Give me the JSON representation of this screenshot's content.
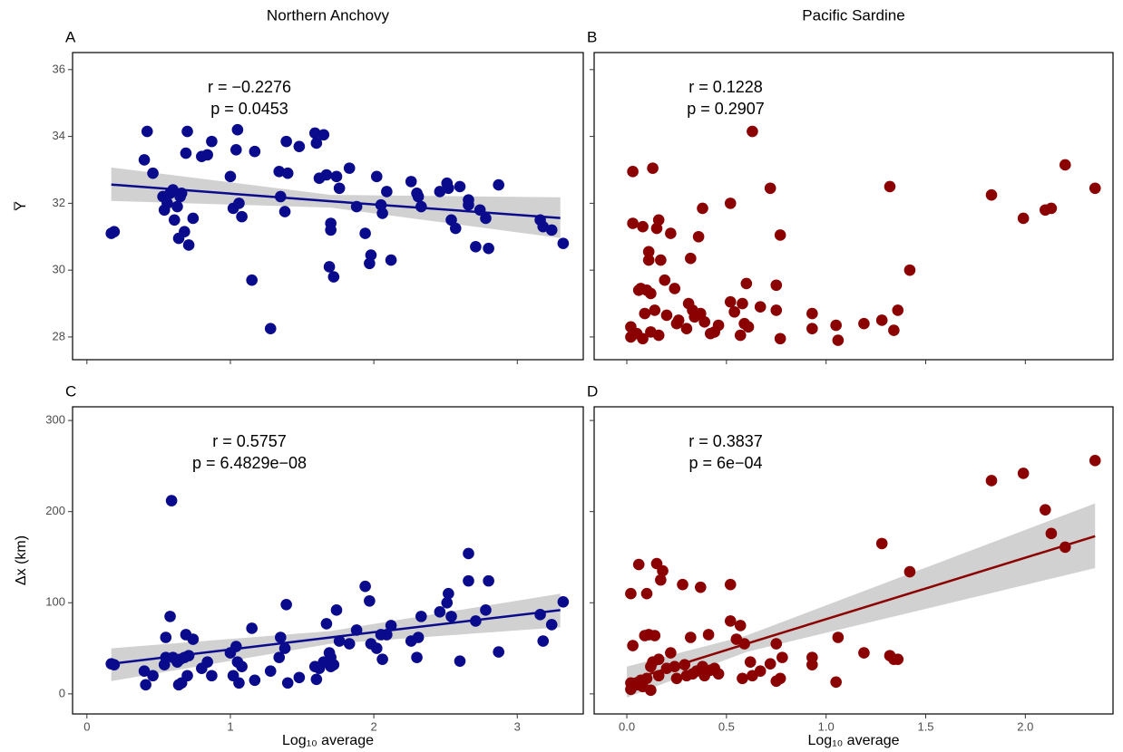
{
  "chart_data": [
    {
      "type": "scatter",
      "panel": "A",
      "column_title": "Northern Anchovy",
      "ylabel": "Y̅",
      "color": "#0a0a8c",
      "annotations": [
        "r = −0.2276",
        "p = 0.0453"
      ],
      "xlim": [
        -0.1,
        3.46
      ],
      "ylim": [
        27.32,
        36.51
      ],
      "xticks": [
        0,
        1,
        2,
        3
      ],
      "yticks": [
        28,
        30,
        32,
        34,
        36
      ],
      "x": [
        0.17,
        0.19,
        0.4,
        0.42,
        0.46,
        0.53,
        0.54,
        0.56,
        0.58,
        0.6,
        0.61,
        0.63,
        0.64,
        0.65,
        0.66,
        0.68,
        0.69,
        0.7,
        0.71,
        0.74,
        0.8,
        0.84,
        0.87,
        1.0,
        1.02,
        1.04,
        1.05,
        1.06,
        1.08,
        1.15,
        1.17,
        1.28,
        1.34,
        1.35,
        1.38,
        1.39,
        1.4,
        1.48,
        1.59,
        1.6,
        1.62,
        1.65,
        1.67,
        1.69,
        1.7,
        1.7,
        1.72,
        1.74,
        1.76,
        1.83,
        1.88,
        1.94,
        1.97,
        1.98,
        2.02,
        2.05,
        2.06,
        2.09,
        2.12,
        2.26,
        2.3,
        2.31,
        2.33,
        2.46,
        2.51,
        2.52,
        2.54,
        2.57,
        2.6,
        2.66,
        2.66,
        2.71,
        2.74,
        2.78,
        2.8,
        2.87,
        3.16,
        3.18,
        3.24,
        3.32
      ],
      "y": [
        31.1,
        31.15,
        33.3,
        34.15,
        32.9,
        32.2,
        31.8,
        32.0,
        32.3,
        32.4,
        31.5,
        31.9,
        30.95,
        32.2,
        32.3,
        31.15,
        33.5,
        34.15,
        30.75,
        31.55,
        33.4,
        33.45,
        33.85,
        32.8,
        31.85,
        33.6,
        34.2,
        32.0,
        31.6,
        29.7,
        33.55,
        28.25,
        32.95,
        32.2,
        31.75,
        33.85,
        32.9,
        33.7,
        34.1,
        33.8,
        32.75,
        34.05,
        32.85,
        30.1,
        31.4,
        31.2,
        29.8,
        32.8,
        32.45,
        33.05,
        31.9,
        31.1,
        30.2,
        30.45,
        32.8,
        31.95,
        31.7,
        32.35,
        30.3,
        32.65,
        32.3,
        32.2,
        31.9,
        32.35,
        32.6,
        32.45,
        31.5,
        31.25,
        32.5,
        32.1,
        31.95,
        30.7,
        31.8,
        31.55,
        30.65,
        32.55,
        31.5,
        31.3,
        31.2,
        30.8
      ],
      "fit": {
        "x": [
          0.17,
          1.7,
          3.3
        ],
        "y": [
          32.56,
          32.06,
          31.56
        ],
        "lower": [
          32.07,
          31.87,
          30.96
        ],
        "upper": [
          33.07,
          32.25,
          32.18
        ]
      }
    },
    {
      "type": "scatter",
      "panel": "B",
      "column_title": "Pacific Sardine",
      "color": "#8b0000",
      "annotations": [
        "r = 0.1228",
        "p = 0.2907"
      ],
      "xlim": [
        -0.164,
        2.44
      ],
      "ylim": [
        27.32,
        36.51
      ],
      "xticks": [
        0,
        0.5,
        1,
        1.5,
        2
      ],
      "yticks": [
        28,
        30,
        32,
        34,
        36
      ],
      "x": [
        0.02,
        0.02,
        0.03,
        0.03,
        0.05,
        0.06,
        0.07,
        0.08,
        0.08,
        0.09,
        0.1,
        0.11,
        0.11,
        0.12,
        0.12,
        0.13,
        0.14,
        0.15,
        0.16,
        0.16,
        0.17,
        0.19,
        0.2,
        0.22,
        0.24,
        0.25,
        0.26,
        0.3,
        0.31,
        0.32,
        0.33,
        0.34,
        0.36,
        0.37,
        0.38,
        0.39,
        0.42,
        0.44,
        0.46,
        0.52,
        0.52,
        0.54,
        0.57,
        0.58,
        0.59,
        0.6,
        0.61,
        0.63,
        0.67,
        0.72,
        0.75,
        0.75,
        0.77,
        0.77,
        0.93,
        0.93,
        1.05,
        1.06,
        1.19,
        1.28,
        1.32,
        1.34,
        1.36,
        1.42,
        1.83,
        1.99,
        2.1,
        2.13,
        2.2,
        2.35
      ],
      "y": [
        28.0,
        28.3,
        32.95,
        31.4,
        28.1,
        29.4,
        29.45,
        27.95,
        31.3,
        28.7,
        29.4,
        30.3,
        30.55,
        29.3,
        28.15,
        33.05,
        28.8,
        31.25,
        31.5,
        28.05,
        30.3,
        29.7,
        28.65,
        31.1,
        29.45,
        28.4,
        28.5,
        28.25,
        29.0,
        30.35,
        28.8,
        28.6,
        31.0,
        28.7,
        31.85,
        28.45,
        28.1,
        28.15,
        28.35,
        29.05,
        32.0,
        28.75,
        28.05,
        29.0,
        28.4,
        29.6,
        28.3,
        34.15,
        28.9,
        32.45,
        28.8,
        29.55,
        31.05,
        27.95,
        28.7,
        28.25,
        28.35,
        27.9,
        28.4,
        28.5,
        32.5,
        28.2,
        28.8,
        30.0,
        32.25,
        31.55,
        31.8,
        31.85,
        33.15,
        32.45
      ]
    },
    {
      "type": "scatter",
      "panel": "C",
      "ylabel": "Δx (km)",
      "xlabel": "Log₁₀ average",
      "color": "#0a0a8c",
      "annotations": [
        "r = 0.5757",
        "p = 6.4829e−08"
      ],
      "xlim": [
        -0.1,
        3.46
      ],
      "ylim": [
        -22,
        315
      ],
      "xticks": [
        0,
        1,
        2,
        3
      ],
      "yticks": [
        0,
        100,
        200,
        300
      ],
      "x": [
        0.17,
        0.19,
        0.4,
        0.41,
        0.46,
        0.54,
        0.55,
        0.55,
        0.58,
        0.59,
        0.6,
        0.63,
        0.64,
        0.65,
        0.66,
        0.68,
        0.69,
        0.7,
        0.71,
        0.74,
        0.8,
        0.84,
        0.87,
        1.0,
        1.02,
        1.04,
        1.05,
        1.06,
        1.08,
        1.15,
        1.17,
        1.28,
        1.34,
        1.35,
        1.38,
        1.39,
        1.4,
        1.48,
        1.59,
        1.6,
        1.62,
        1.65,
        1.67,
        1.69,
        1.7,
        1.7,
        1.72,
        1.74,
        1.76,
        1.83,
        1.88,
        1.94,
        1.97,
        1.98,
        2.02,
        2.05,
        2.06,
        2.09,
        2.12,
        2.26,
        2.3,
        2.31,
        2.33,
        2.46,
        2.51,
        2.52,
        2.54,
        2.6,
        2.66,
        2.66,
        2.71,
        2.78,
        2.8,
        2.87,
        3.16,
        3.18,
        3.24,
        3.32
      ],
      "y": [
        33,
        32,
        25,
        10,
        20,
        32,
        62,
        40,
        85,
        212,
        40,
        35,
        10,
        38,
        12,
        40,
        65,
        20,
        42,
        60,
        28,
        35,
        20,
        45,
        20,
        52,
        35,
        12,
        30,
        72,
        15,
        25,
        40,
        62,
        50,
        98,
        12,
        18,
        30,
        16,
        28,
        35,
        77,
        45,
        30,
        40,
        32,
        92,
        58,
        55,
        70,
        118,
        102,
        55,
        50,
        65,
        38,
        65,
        75,
        58,
        40,
        62,
        85,
        90,
        100,
        110,
        85,
        36,
        154,
        124,
        80,
        92,
        124,
        46,
        87,
        58,
        76,
        101
      ],
      "fit": {
        "x": [
          0.17,
          1.7,
          3.3
        ],
        "y": [
          33,
          62,
          92
        ],
        "lower": [
          14,
          55,
          73
        ],
        "upper": [
          50,
          69,
          110
        ]
      }
    },
    {
      "type": "scatter",
      "panel": "D",
      "xlabel": "Log₁₀ average",
      "color": "#8b0000",
      "annotations": [
        "r = 0.3837",
        "p = 6e−04"
      ],
      "xlim": [
        -0.164,
        2.44
      ],
      "ylim": [
        -22,
        315
      ],
      "xticks": [
        {
          "value": 0,
          "label": "0.0"
        },
        0.5,
        {
          "value": 1,
          "label": "1.0"
        },
        1.5,
        {
          "value": 2,
          "label": "2.0"
        }
      ],
      "yticks": [
        0,
        100,
        200,
        300
      ],
      "x": [
        0.02,
        0.02,
        0.02,
        0.03,
        0.05,
        0.06,
        0.07,
        0.08,
        0.09,
        0.1,
        0.1,
        0.11,
        0.12,
        0.12,
        0.13,
        0.14,
        0.15,
        0.16,
        0.16,
        0.17,
        0.18,
        0.2,
        0.22,
        0.24,
        0.25,
        0.28,
        0.29,
        0.3,
        0.32,
        0.33,
        0.35,
        0.37,
        0.38,
        0.39,
        0.41,
        0.42,
        0.44,
        0.46,
        0.52,
        0.52,
        0.55,
        0.57,
        0.58,
        0.59,
        0.62,
        0.63,
        0.67,
        0.72,
        0.75,
        0.75,
        0.77,
        0.78,
        0.93,
        0.93,
        1.05,
        1.06,
        1.19,
        1.28,
        1.32,
        1.34,
        1.36,
        1.42,
        1.83,
        1.99,
        2.1,
        2.13,
        2.2,
        2.35
      ],
      "y": [
        5,
        12,
        110,
        53,
        10,
        142,
        15,
        8,
        64,
        17,
        110,
        65,
        4,
        30,
        35,
        64,
        143,
        20,
        38,
        125,
        135,
        28,
        45,
        30,
        17,
        120,
        32,
        20,
        62,
        22,
        25,
        117,
        30,
        20,
        65,
        26,
        28,
        22,
        80,
        120,
        60,
        75,
        17,
        55,
        35,
        20,
        25,
        33,
        55,
        14,
        17,
        40,
        40,
        32,
        13,
        62,
        45,
        165,
        42,
        38,
        38,
        134,
        234,
        242,
        202,
        176,
        161,
        256
      ],
      "fit": {
        "x": [
          0.0,
          0.6,
          2.35
        ],
        "y": [
          14,
          55,
          173
        ],
        "lower": [
          -4,
          46,
          138
        ],
        "upper": [
          30,
          64,
          209
        ]
      }
    }
  ]
}
